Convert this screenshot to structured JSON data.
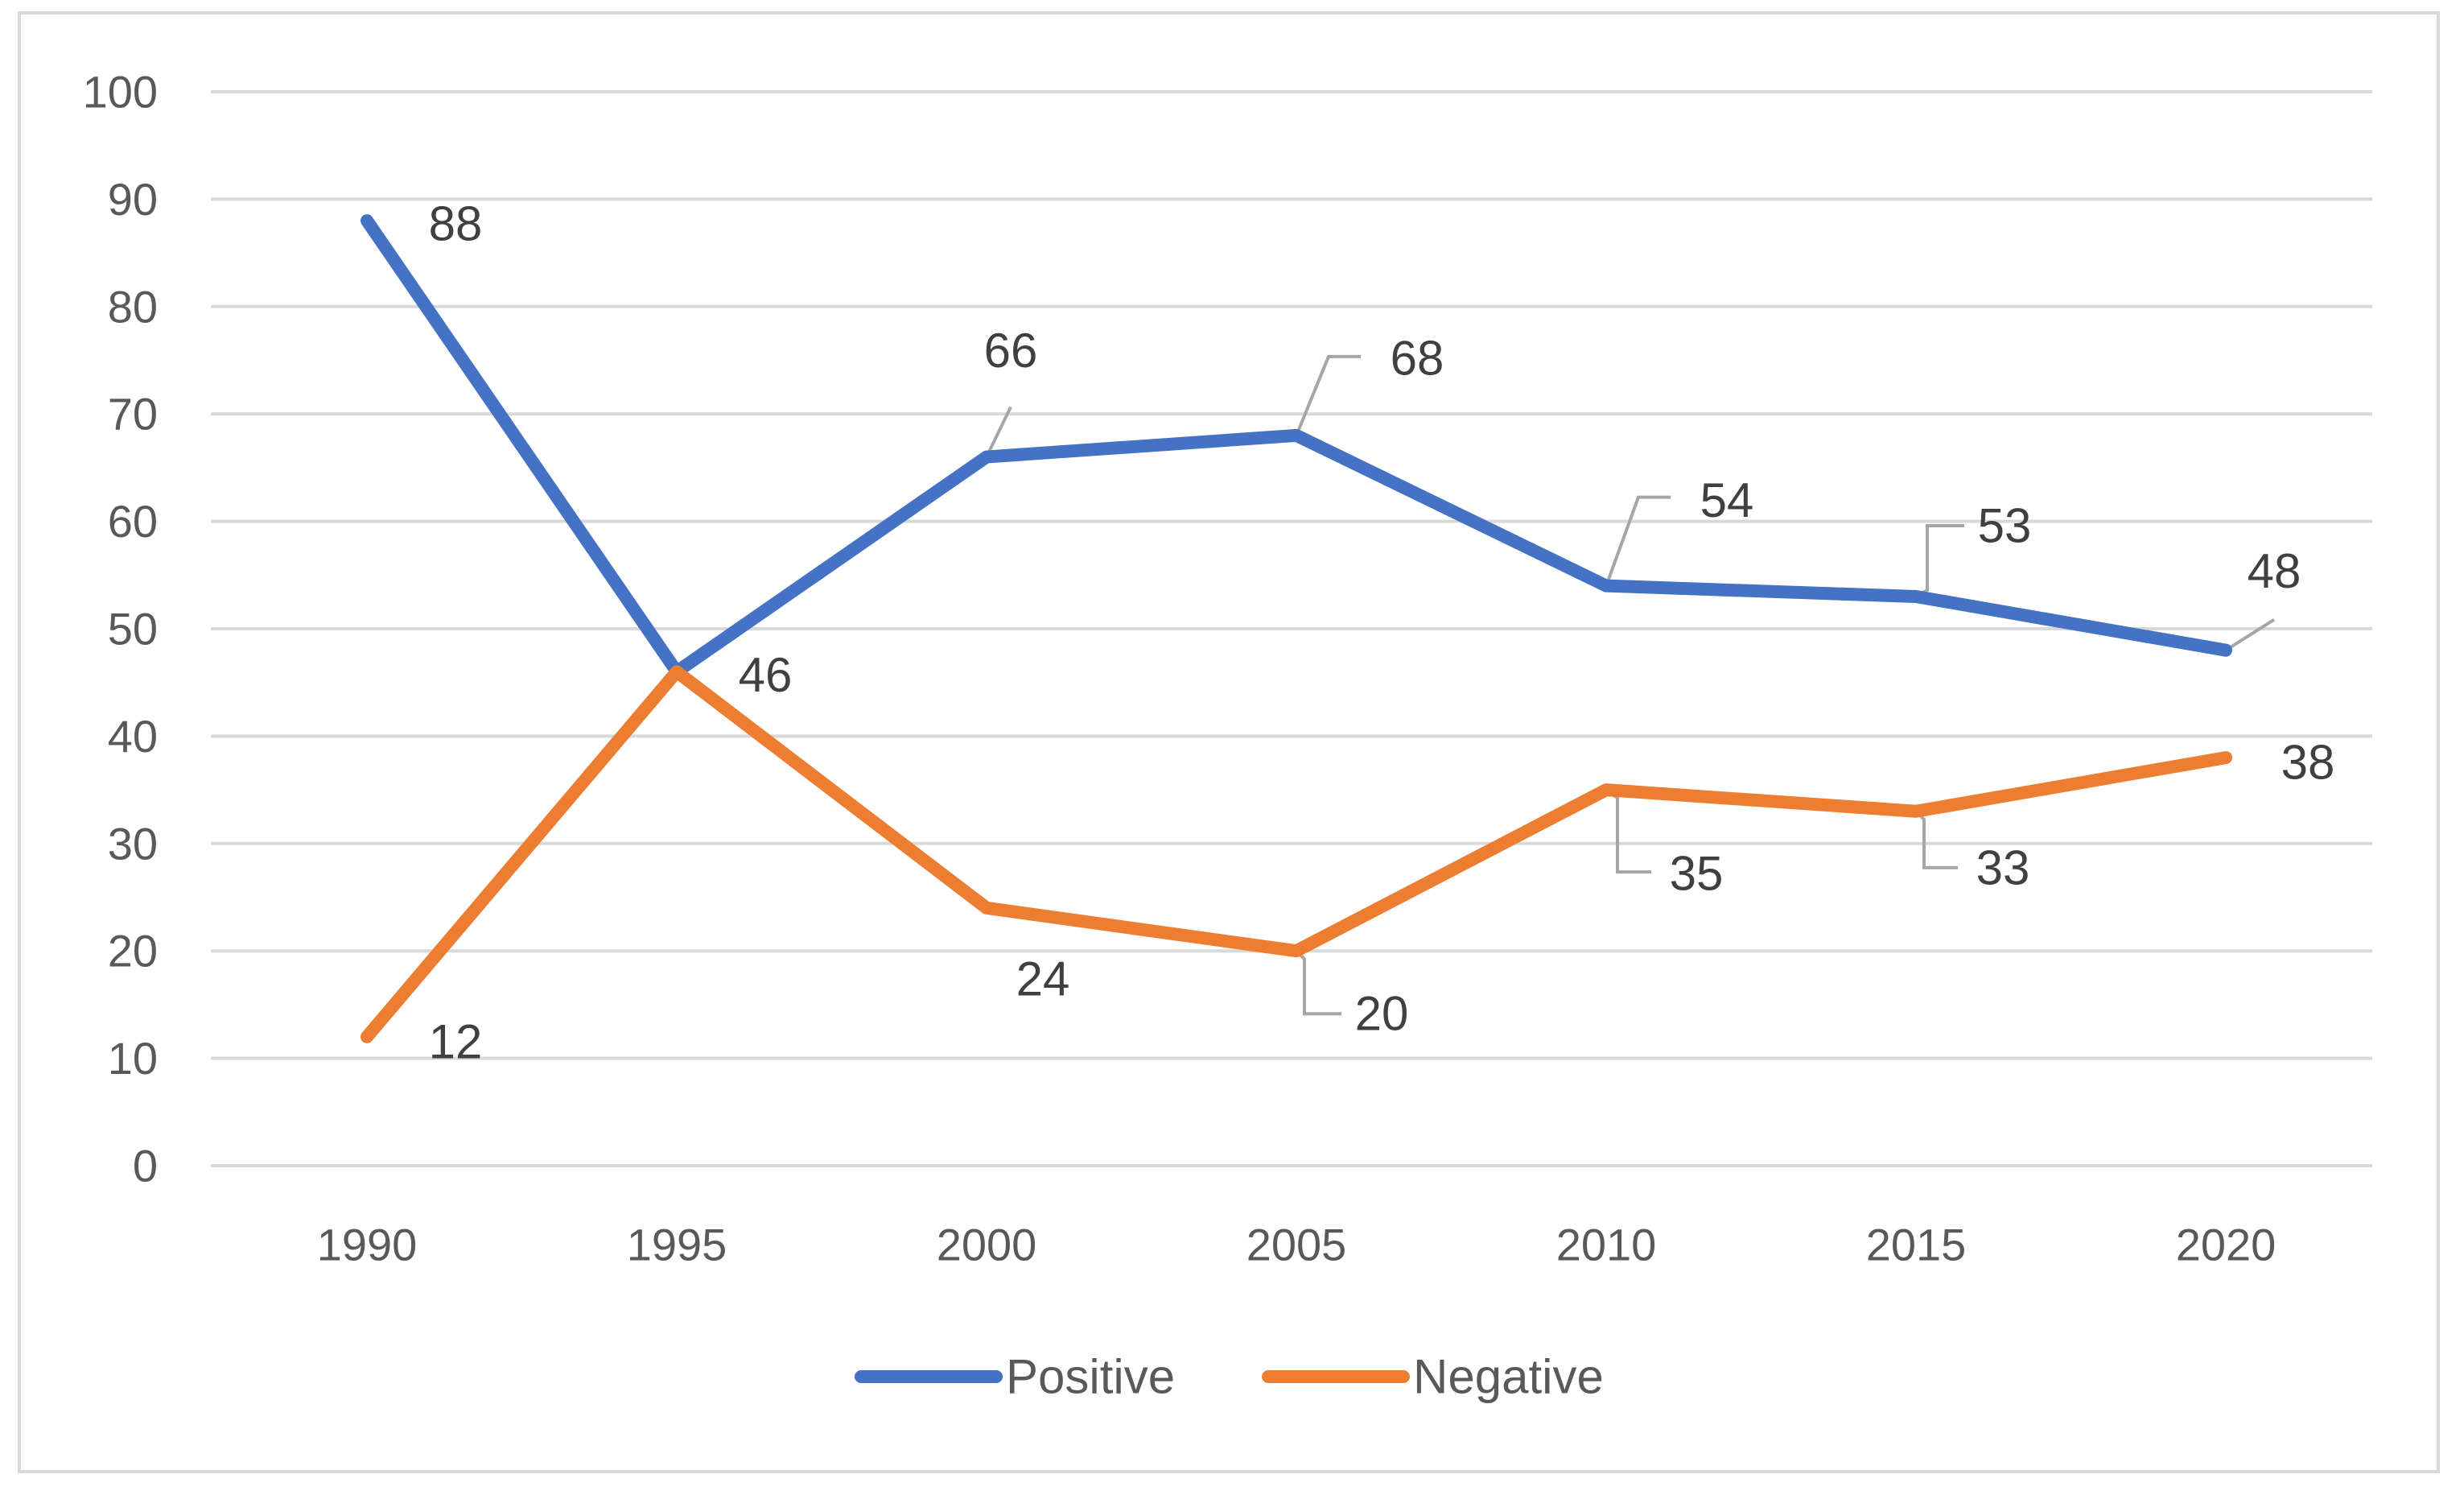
{
  "chart_data": {
    "type": "line",
    "title": "",
    "xlabel": "",
    "ylabel": "",
    "categories": [
      "1990",
      "1995",
      "2000",
      "2005",
      "2010",
      "2015",
      "2020"
    ],
    "ylim": [
      0,
      100
    ],
    "yticks": [
      0,
      10,
      20,
      30,
      40,
      50,
      60,
      70,
      80,
      90,
      100
    ],
    "grid": true,
    "legend_position": "bottom",
    "series": [
      {
        "name": "Positive",
        "color": "#4472C4",
        "values": [
          88,
          46,
          66,
          68,
          54,
          53,
          48
        ],
        "labels": [
          "88",
          "46",
          "66",
          "68",
          "54",
          "53",
          "48"
        ]
      },
      {
        "name": "Negative",
        "color": "#ED7D31",
        "values": [
          12,
          46,
          24,
          20,
          35,
          33,
          38
        ],
        "labels": [
          "12",
          "",
          "24",
          "20",
          "35",
          "33",
          "38"
        ]
      }
    ],
    "leader_line_color": "#a6a6a6",
    "gridline_color": "#d9d9d9"
  }
}
